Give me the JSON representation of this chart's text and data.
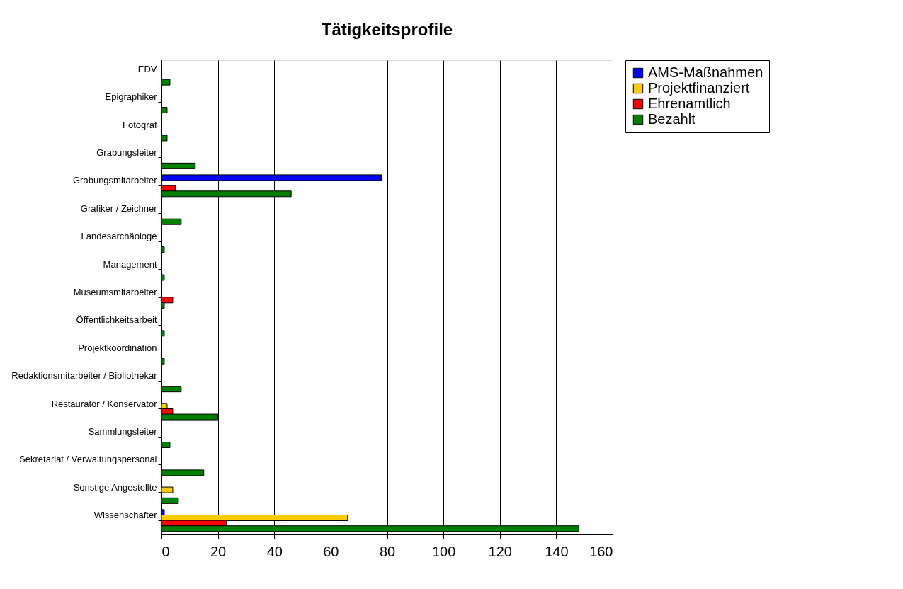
{
  "chart_data": {
    "type": "bar",
    "orientation": "horizontal",
    "title": "Tätigkeitsprofile",
    "categories": [
      "EDV",
      "Epigraphiker",
      "Fotograf",
      "Grabungsleiter",
      "Grabungsmitarbeiter",
      "Grafiker / Zeichner",
      "Landesarchäologe",
      "Management",
      "Museumsmitarbeiter",
      "Öffentlichkeitsarbeit",
      "Projektkoordination",
      "Redaktionsmitarbeiter / Bibliothekar",
      "Restaurator / Konservator",
      "Sammlungsleiter",
      "Sekretariat / Verwaltungspersonal",
      "Sonstige Angestellte",
      "Wissenschafter"
    ],
    "series": [
      {
        "name": "AMS-Maßnahmen",
        "color": "#0000ff",
        "values": [
          null,
          null,
          null,
          null,
          78,
          null,
          null,
          null,
          null,
          null,
          null,
          null,
          null,
          null,
          null,
          null,
          1
        ]
      },
      {
        "name": "Projektfinanziert",
        "color": "#ffcc00",
        "values": [
          null,
          null,
          null,
          null,
          null,
          null,
          null,
          null,
          null,
          null,
          null,
          null,
          2,
          null,
          null,
          4,
          66
        ]
      },
      {
        "name": "Ehrenamtlich",
        "color": "#ff0000",
        "values": [
          null,
          null,
          null,
          null,
          5,
          null,
          null,
          null,
          4,
          null,
          null,
          null,
          4,
          null,
          null,
          null,
          23
        ]
      },
      {
        "name": "Bezahlt",
        "color": "#008000",
        "values": [
          3,
          2,
          2,
          12,
          46,
          7,
          1,
          1,
          1,
          1,
          1,
          7,
          20,
          3,
          15,
          6,
          148
        ]
      }
    ],
    "xlim": [
      0,
      160
    ],
    "xticks": [
      0,
      20,
      40,
      60,
      80,
      100,
      120,
      140,
      160
    ],
    "grid": "x",
    "legend": "right"
  }
}
